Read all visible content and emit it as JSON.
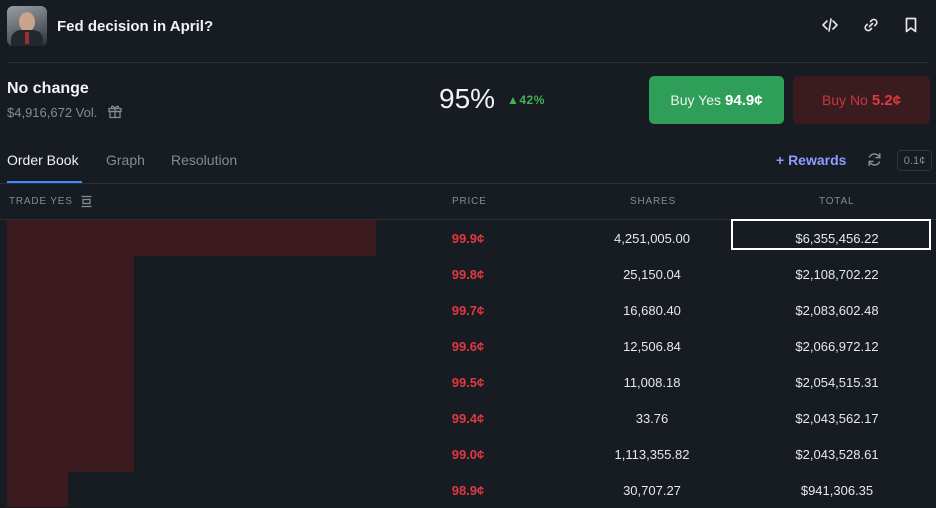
{
  "header": {
    "title": "Fed decision in April?",
    "icons": [
      "code-icon",
      "link-icon",
      "bookmark-icon"
    ]
  },
  "market": {
    "outcome": "No change",
    "volume": "$4,916,672 Vol.",
    "probability": "95%",
    "change": "▲42%",
    "buy_yes_label": "Buy Yes",
    "buy_yes_price": "94.9¢",
    "buy_no_label": "Buy No",
    "buy_no_price": "5.2¢"
  },
  "tabs": [
    "Order Book",
    "Graph",
    "Resolution"
  ],
  "active_tab": "Order Book",
  "toolbar": {
    "rewards": "+ Rewards",
    "tick_size": "0.1¢"
  },
  "orderbook": {
    "headers": {
      "trade": "TRADE YES",
      "price": "PRICE",
      "shares": "SHARES",
      "total": "TOTAL"
    },
    "rows": [
      {
        "price": "99.9¢",
        "shares": "4,251,005.00",
        "total": "$6,355,456.22"
      },
      {
        "price": "99.8¢",
        "shares": "25,150.04",
        "total": "$2,108,702.22"
      },
      {
        "price": "99.7¢",
        "shares": "16,680.40",
        "total": "$2,083,602.48"
      },
      {
        "price": "99.6¢",
        "shares": "12,506.84",
        "total": "$2,066,972.12"
      },
      {
        "price": "99.5¢",
        "shares": "11,008.18",
        "total": "$2,054,515.31"
      },
      {
        "price": "99.4¢",
        "shares": "33.76",
        "total": "$2,043,562.17"
      },
      {
        "price": "99.0¢",
        "shares": "1,113,355.82",
        "total": "$2,043,528.61"
      },
      {
        "price": "98.9¢",
        "shares": "30,707.27",
        "total": "$941,306.35"
      }
    ]
  },
  "colors": {
    "background": "#171b22",
    "yes": "#2e9e59",
    "no": "#e0393f",
    "depth": "#3b1b20",
    "accent": "#3d8bfd",
    "rewards": "#8c9cff"
  }
}
